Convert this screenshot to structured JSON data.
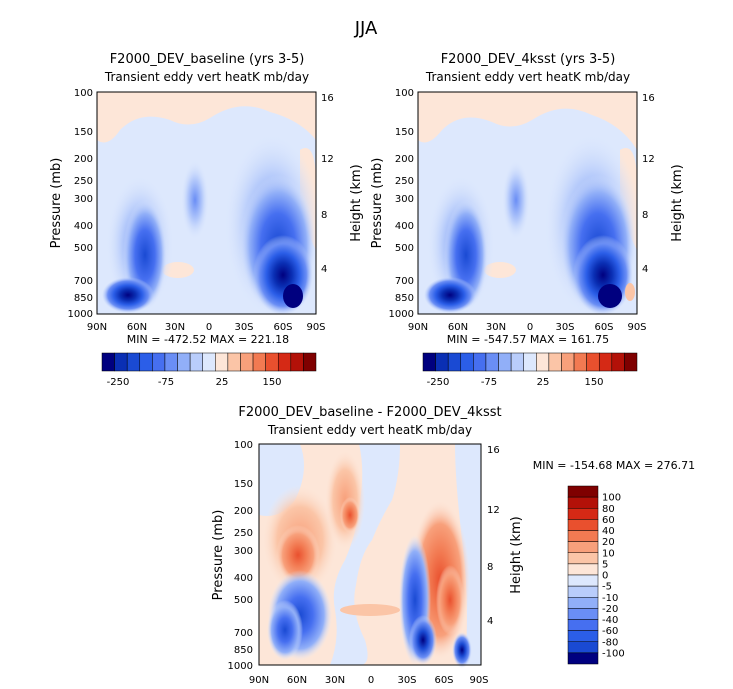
{
  "figure_title": "JJA",
  "chart_data": [
    {
      "type": "heatmap",
      "title": "F2000_DEV_baseline (yrs 3-5)",
      "subtitle": "Transient eddy vert heatK mb/day",
      "ylabel": "Pressure (mb)",
      "ylabel_right": "Height (km)",
      "x_ticks": [
        "90N",
        "60N",
        "30N",
        "0",
        "30S",
        "60S",
        "90S"
      ],
      "y_ticks": [
        "100",
        "150",
        "200",
        "250",
        "300",
        "400",
        "500",
        "700",
        "850",
        "1000"
      ],
      "y_right_ticks": [
        "16",
        "12",
        "8",
        "4"
      ],
      "ylim": [
        1000,
        100
      ],
      "scale": "log-pressure",
      "stats": "MIN = -472.52   MAX = 221.18",
      "colorbar_labels": [
        "-250",
        "-75",
        "25",
        "150"
      ],
      "colorbar_orientation": "horizontal",
      "features": [
        {
          "lat": 70,
          "p": 450,
          "value": -250
        },
        {
          "lat": 60,
          "p": 820,
          "value": -250
        },
        {
          "lat": 25,
          "p": 300,
          "value": -60
        },
        {
          "lat": -45,
          "p": 600,
          "value": -300
        },
        {
          "lat": -68,
          "p": 850,
          "value": -472
        },
        {
          "lat": 50,
          "p": 130,
          "value": 20
        }
      ]
    },
    {
      "type": "heatmap",
      "title": "F2000_DEV_4ksst (yrs 3-5)",
      "subtitle": "Transient eddy vert heatK mb/day",
      "ylabel": "Pressure (mb)",
      "ylabel_right": "Height (km)",
      "x_ticks": [
        "90N",
        "60N",
        "30N",
        "0",
        "30S",
        "60S",
        "90S"
      ],
      "y_ticks": [
        "100",
        "150",
        "200",
        "250",
        "300",
        "400",
        "500",
        "700",
        "850",
        "1000"
      ],
      "y_right_ticks": [
        "16",
        "12",
        "8",
        "4"
      ],
      "ylim": [
        1000,
        100
      ],
      "scale": "log-pressure",
      "stats": "MIN = -547.57   MAX = 161.75",
      "colorbar_labels": [
        "-250",
        "-75",
        "25",
        "150"
      ],
      "colorbar_orientation": "horizontal",
      "features": [
        {
          "lat": 70,
          "p": 450,
          "value": -250
        },
        {
          "lat": 60,
          "p": 820,
          "value": -250
        },
        {
          "lat": 25,
          "p": 300,
          "value": -60
        },
        {
          "lat": -45,
          "p": 600,
          "value": -300
        },
        {
          "lat": -68,
          "p": 850,
          "value": -547
        },
        {
          "lat": 50,
          "p": 130,
          "value": 20
        }
      ]
    },
    {
      "type": "heatmap",
      "title": "F2000_DEV_baseline - F2000_DEV_4ksst",
      "subtitle": "Transient eddy vert heatK mb/day",
      "ylabel": "Pressure (mb)",
      "ylabel_right": "Height (km)",
      "x_ticks": [
        "90N",
        "60N",
        "30N",
        "0",
        "30S",
        "60S",
        "90S"
      ],
      "y_ticks": [
        "100",
        "150",
        "200",
        "250",
        "300",
        "400",
        "500",
        "700",
        "850",
        "1000"
      ],
      "y_right_ticks": [
        "16",
        "12",
        "8",
        "4"
      ],
      "ylim": [
        1000,
        100
      ],
      "scale": "log-pressure",
      "stats": "MIN = -154.68   MAX = 276.71",
      "colorbar_labels": [
        "100",
        "80",
        "60",
        "40",
        "20",
        "10",
        "5",
        "0",
        "-5",
        "-10",
        "-20",
        "-40",
        "-60",
        "-80",
        "-100"
      ],
      "colorbar_orientation": "vertical",
      "features": [
        {
          "lat": 50,
          "p": 250,
          "value": 20
        },
        {
          "lat": 22,
          "p": 220,
          "value": 30
        },
        {
          "lat": -55,
          "p": 420,
          "value": 60
        },
        {
          "lat": 55,
          "p": 500,
          "value": -20
        },
        {
          "lat": -30,
          "p": 500,
          "value": -40
        },
        {
          "lat": -55,
          "p": 850,
          "value": -80
        }
      ]
    }
  ],
  "colormap": [
    "#00007f",
    "#0a2fb4",
    "#1a4ad3",
    "#2b5ee8",
    "#466ff0",
    "#6a8ef5",
    "#91aff8",
    "#b9cdfb",
    "#dde8fd",
    "#fde6d8",
    "#fbc5a7",
    "#f8a07b",
    "#f27a52",
    "#e9502e",
    "#d52915",
    "#b31108",
    "#7f0000"
  ]
}
